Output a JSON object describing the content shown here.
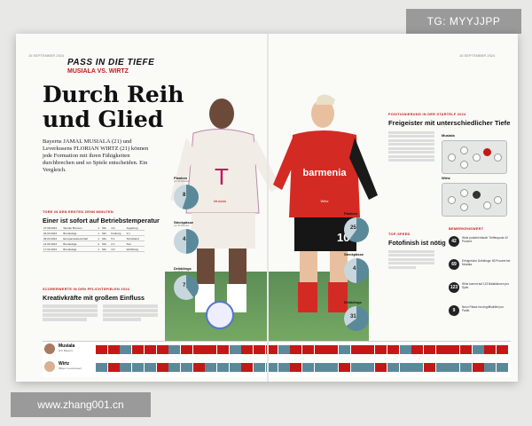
{
  "watermarks": {
    "tg": "TG: MYYJJPP",
    "url": "www.zhang001.cn"
  },
  "left_page": {
    "runhead": "16 SEPTEMBER 2024",
    "kicker": "PASS IN DIE TIEFE",
    "subkicker": "MUSIALA VS. WIRTZ",
    "title_line1": "Durch Reih",
    "title_line2": "und Glied",
    "intro": "Bayerns JAMAL MUSIALA (21) und Leverkusens FLORIAN WIRTZ (21) können jede Formation mit ihren Fähigkeiten durchbrechen und so Spiele entscheiden. Ein Vergleich.",
    "goals_label": "TORE IN DEN ERSTEN ZEHN MINUTEN",
    "goals_title": "Einer ist sofort auf Betriebstemperatur",
    "goals_table": [
      [
        "27.08.2023",
        "Werder Bremen",
        "1",
        "Min.",
        "4:0",
        "Augsburg"
      ],
      [
        "03.03.2024",
        "Bundesliga",
        "1",
        "Min.",
        "Freiburg",
        "2:1"
      ],
      [
        "09.03.2024",
        "Europameisterschaft",
        "1",
        "Min.",
        "5:1",
        "Schottland"
      ],
      [
        "14.06.2024",
        "Bundesliga",
        "2",
        "Min.",
        "2:1",
        "Kiel"
      ],
      [
        "17.02.2024",
        "Bundesliga",
        "1",
        "Min.",
        "3:0",
        "Wolfsburg"
      ]
    ],
    "scorer_label": "SCORERWERTE IN DEN PFLICHTSPIELEN 2024",
    "scorer_title": "Kreativkräfte mit großem Einfluss"
  },
  "players": {
    "left_shirt": "Musiala",
    "right_shirt": "Wirtz",
    "left_sponsor": "T",
    "right_sponsor": "barmenia"
  },
  "stats": [
    {
      "label": "Flanken",
      "sub": "pro 90 Minuten",
      "left": "8",
      "right": "25"
    },
    {
      "label": "Steckpässe",
      "sub": "pro 90 Minuten",
      "left": "4",
      "right": "4"
    },
    {
      "label": "Dribblings",
      "sub": "pro 90 Minuten",
      "left": "7",
      "right": "31"
    }
  ],
  "right_page": {
    "runhead": "16 SEPTEMBER 2024",
    "pos_label": "POSITIONIERUNG IN DER STARTELF 2024",
    "pos_title": "Freigeister mit unterschiedlicher Tiefe",
    "pitch_musiala": "Musiala",
    "pitch_wirtz": "Wirtz",
    "top_speed_label": "TOP-SPEED",
    "top_speed_title": "Fotofinish ist nötig",
    "bemerkenswert_label": "BEMERKENSWERT",
    "facts": [
      {
        "num": "42",
        "text": "Wirtz punktet eiskalt: Trefferquote 42 Prozent."
      },
      {
        "num": "69",
        "text": "Erfolgreiche Dribblings: 69 Prozent bei Musiala."
      },
      {
        "num": "123",
        "text": "Wirtz kommt auf 123 Ballaktionen pro Spiel."
      },
      {
        "num": "9",
        "text": "Neun Pässe ins Angriffsdrittel pro Partie."
      }
    ]
  },
  "bigtable": {
    "row1_name": "Musiala",
    "row1_sub": "(FC Bayern)",
    "row2_name": "Wirtz",
    "row2_sub": "(Bayer Leverkusen)"
  },
  "colors": {
    "bayern_red": "#c41818",
    "leverkusen_black": "#222222",
    "accent_teal": "#5a8a9a"
  }
}
